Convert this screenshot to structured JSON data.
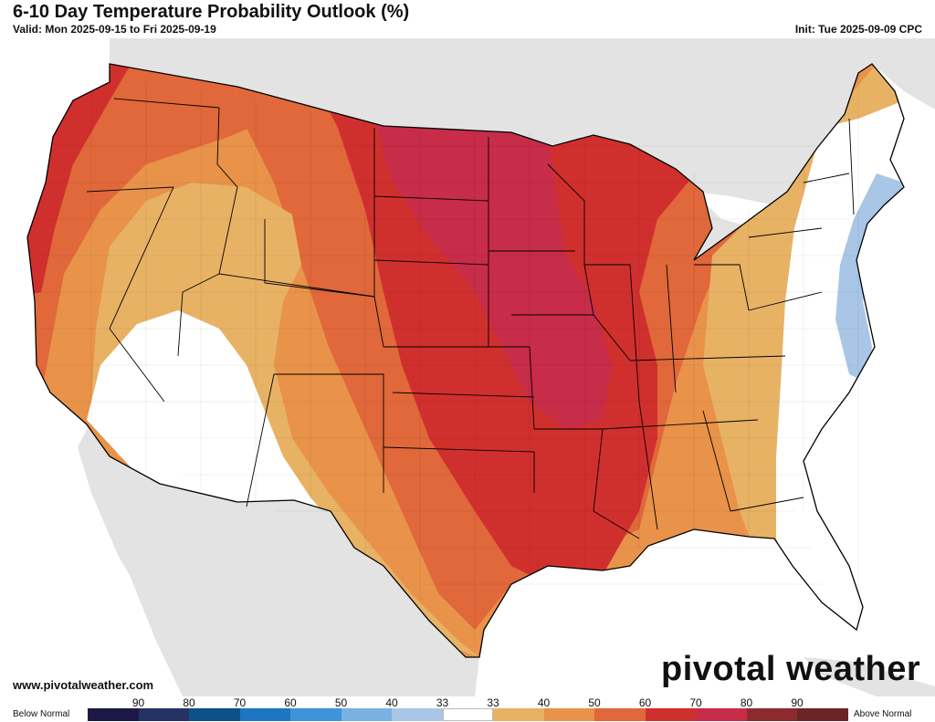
{
  "header": {
    "title": "6-10 Day Temperature Probability Outlook (%)",
    "valid": "Valid: Mon 2025-09-15 to Fri 2025-09-19",
    "init": "Init: Tue 2025-09-09 CPC"
  },
  "footer": {
    "site": "www.pivotalweather.com",
    "logo": "pivotal weather"
  },
  "legend": {
    "below_label": "Below Normal",
    "above_label": "Above Normal",
    "ticks": [
      "90",
      "80",
      "70",
      "60",
      "50",
      "40",
      "33",
      "33",
      "40",
      "50",
      "60",
      "70",
      "80",
      "90"
    ],
    "colors": [
      "#1c1845",
      "#243364",
      "#0f4f8a",
      "#1d76c2",
      "#3f93d8",
      "#79b1e2",
      "#a9c6e6",
      "#ffffff",
      "#e8b265",
      "#e8924a",
      "#e0683a",
      "#d0302d",
      "#c72c48",
      "#8c2a2e",
      "#6b2526"
    ]
  },
  "map": {
    "land_color": "#e3e3e3",
    "water_color": "#ffffff",
    "zones": [
      {
        "name": "Above 70-80% (Upper Midwest - Mid Mississippi)",
        "color": "#c72c48"
      },
      {
        "name": "Above 60-70% (Plains - Great Lakes - Lower Mississippi)",
        "color": "#d0302d"
      },
      {
        "name": "Above 50-60% (Pacific NW - Southern Plains - Ohio Valley)",
        "color": "#e0683a"
      },
      {
        "name": "Above 40-50%",
        "color": "#e8924a"
      },
      {
        "name": "Above 33-40% (Great Basin - Texas - Appalachians)",
        "color": "#e8b265"
      },
      {
        "name": "Near Normal (Desert Southwest - Southeast)",
        "color": "#ffffff"
      },
      {
        "name": "Below 33-40% (Mid-Atlantic coast)",
        "color": "#a9c6e6"
      }
    ]
  }
}
